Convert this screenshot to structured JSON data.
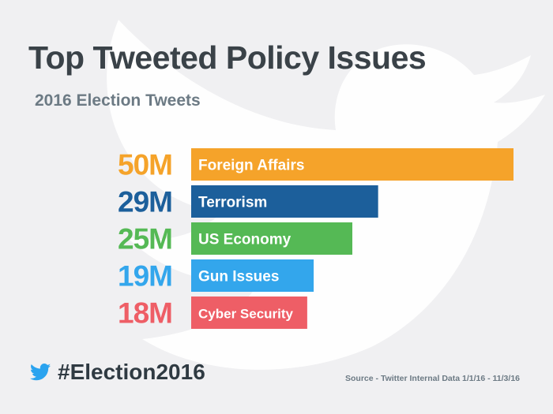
{
  "colors": {
    "background": "#f0f0f2",
    "watermark": "#ffffff",
    "title": "#3a4248",
    "subtitle": "#6c7a84",
    "twitter_blue": "#2aa3ef"
  },
  "icons": {
    "brand": "twitter-bird-icon",
    "watermark": "twitter-bird-watermark"
  },
  "title": "Top Tweeted Policy Issues",
  "subtitle": "2016 Election Tweets",
  "hashtag": "#Election2016",
  "source": "Source - Twitter Internal Data 1/1/16 - 11/3/16",
  "chart_data": {
    "type": "bar",
    "orientation": "horizontal",
    "categories": [
      "Foreign Affairs",
      "Terrorism",
      "US Economy",
      "Gun Issues",
      "Cyber Security"
    ],
    "values": [
      50,
      29,
      25,
      19,
      18
    ],
    "value_labels": [
      "50M",
      "29M",
      "25M",
      "19M",
      "18M"
    ],
    "unit": "M",
    "colors": [
      "#f5a32a",
      "#1c5f9b",
      "#55b955",
      "#33a6ec",
      "#ee5e66"
    ],
    "title": "Top Tweeted Policy Issues",
    "subtitle": "2016 Election Tweets",
    "grid": false,
    "legend": "none"
  }
}
